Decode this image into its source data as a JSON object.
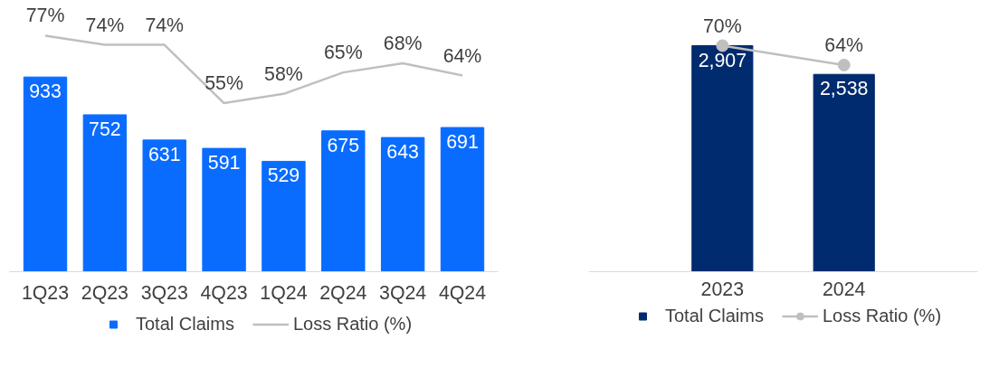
{
  "chart_data": [
    {
      "type": "bar",
      "categories": [
        "1Q23",
        "2Q23",
        "3Q23",
        "4Q23",
        "1Q24",
        "2Q24",
        "3Q24",
        "4Q24"
      ],
      "data_labels": true,
      "legend": "bottom",
      "grid": false,
      "series": [
        {
          "name": "Total Claims",
          "color": "#0a6cff",
          "values": [
            933,
            752,
            631,
            591,
            529,
            675,
            643,
            691
          ]
        },
        {
          "name": "Loss Ratio (%)",
          "type": "line",
          "axis": "y2",
          "color": "#bfbfbf",
          "marker": "none",
          "value_labels": [
            "77%",
            "74%",
            "74%",
            "55%",
            "58%",
            "65%",
            "68%",
            "64%"
          ],
          "values": [
            77,
            74,
            74,
            55,
            58,
            65,
            68,
            64
          ]
        }
      ]
    },
    {
      "type": "bar",
      "categories": [
        "2023",
        "2024"
      ],
      "data_labels": true,
      "legend": "bottom",
      "grid": false,
      "series": [
        {
          "name": "Total Claims",
          "color": "#002b6e",
          "value_labels": [
            "2,907",
            "2,538"
          ],
          "values": [
            2907,
            2538
          ]
        },
        {
          "name": "Loss Ratio (%)",
          "type": "line",
          "axis": "y2",
          "color": "#bfbfbf",
          "marker": "circle",
          "value_labels": [
            "70%",
            "64%"
          ],
          "values": [
            70,
            64
          ]
        }
      ]
    }
  ]
}
